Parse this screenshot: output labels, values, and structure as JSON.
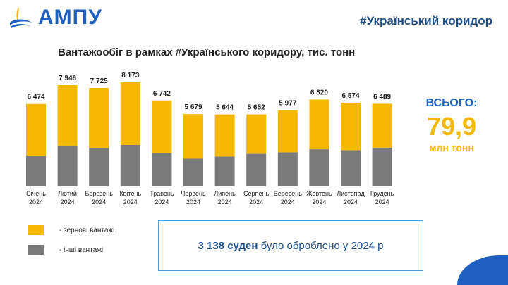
{
  "header": {
    "logo_text": "АМПУ",
    "hashtag": "#Український коридор"
  },
  "summary": {
    "total_label": "ВСЬОГО:",
    "total_value": "79,9",
    "total_unit": "млн тонн"
  },
  "legend": [
    {
      "label": "- зернові вантажі",
      "color": "#f5b800"
    },
    {
      "label": "- інші вантажі",
      "color": "#7a7a7a"
    }
  ],
  "info": {
    "highlight": "3 138 суден",
    "rest": " було оброблено у 2024 р"
  },
  "chart_data": {
    "type": "bar",
    "stacked": true,
    "title": "Вантажообіг в рамках #Українського коридору, тис. тонн",
    "categories": [
      [
        "Січень",
        "2024"
      ],
      [
        "Лютий",
        "2024"
      ],
      [
        "Березень",
        "2024"
      ],
      [
        "Квітень",
        "2024"
      ],
      [
        "Травень",
        "2024"
      ],
      [
        "Червень",
        "2024"
      ],
      [
        "Липень",
        "2024"
      ],
      [
        "Серпень",
        "2024"
      ],
      [
        "Вересень",
        "2024"
      ],
      [
        "Жовтень",
        "2024"
      ],
      [
        "Листопад",
        "2024"
      ],
      [
        "Грудень",
        "2024"
      ]
    ],
    "totals": [
      6474,
      7946,
      7725,
      8173,
      6742,
      5679,
      5644,
      5652,
      5977,
      6820,
      6574,
      6489
    ],
    "total_labels": [
      "6 474",
      "7 946",
      "7 725",
      "8 173",
      "6 742",
      "5 679",
      "5 644",
      "5 652",
      "5 977",
      "6 820",
      "6 574",
      "6 489"
    ],
    "series": [
      {
        "name": "інші вантажі",
        "color": "#7a7a7a",
        "values": [
          2430,
          3170,
          3010,
          3260,
          2620,
          2180,
          2350,
          2560,
          2680,
          2920,
          2850,
          3050
        ]
      },
      {
        "name": "зернові вантажі",
        "color": "#f5b800",
        "values": [
          4044,
          4776,
          4715,
          4913,
          4122,
          3499,
          3294,
          3092,
          3297,
          3900,
          3724,
          3439
        ]
      }
    ],
    "ylim": [
      0,
      8500
    ],
    "xlabel": "",
    "ylabel": ""
  }
}
